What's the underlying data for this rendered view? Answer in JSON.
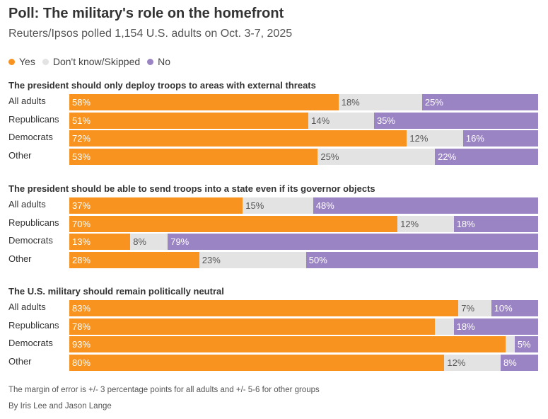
{
  "title": "Poll: The military's role on the homefront",
  "subtitle": "Reuters/Ipsos polled 1,154 U.S. adults on Oct. 3-7, 2025",
  "legend": [
    {
      "label": "Yes",
      "color": "#f7931e"
    },
    {
      "label": "Don't know/Skipped",
      "color": "#e3e3e3"
    },
    {
      "label": "No",
      "color": "#9b84c3"
    }
  ],
  "chart_data": {
    "type": "bar",
    "stacked": true,
    "orientation": "horizontal",
    "legend_position": "top-left",
    "series_names": [
      "Yes",
      "Don't know/Skipped",
      "No"
    ],
    "panels": [
      {
        "question": "The president should only deploy troops to areas with external threats",
        "rows": [
          {
            "group": "All adults",
            "values": [
              58,
              18,
              25
            ],
            "labels": [
              "58%",
              "18%",
              "25%"
            ]
          },
          {
            "group": "Republicans",
            "values": [
              51,
              14,
              35
            ],
            "labels": [
              "51%",
              "14%",
              "35%"
            ]
          },
          {
            "group": "Democrats",
            "values": [
              72,
              12,
              16
            ],
            "labels": [
              "72%",
              "12%",
              "16%"
            ]
          },
          {
            "group": "Other",
            "values": [
              53,
              25,
              22
            ],
            "labels": [
              "53%",
              "25%",
              "22%"
            ]
          }
        ]
      },
      {
        "question": "The president should be able to send troops into a state even if its governor objects",
        "rows": [
          {
            "group": "All adults",
            "values": [
              37,
              15,
              48
            ],
            "labels": [
              "37%",
              "15%",
              "48%"
            ]
          },
          {
            "group": "Republicans",
            "values": [
              70,
              12,
              18
            ],
            "labels": [
              "70%",
              "12%",
              "18%"
            ]
          },
          {
            "group": "Democrats",
            "values": [
              13,
              8,
              79
            ],
            "labels": [
              "13%",
              "8%",
              "79%"
            ]
          },
          {
            "group": "Other",
            "values": [
              28,
              23,
              50
            ],
            "labels": [
              "28%",
              "23%",
              "50%"
            ]
          }
        ]
      },
      {
        "question": "The U.S. military should remain politically neutral",
        "rows": [
          {
            "group": "All adults",
            "values": [
              83,
              7,
              10
            ],
            "labels": [
              "83%",
              "7%",
              "10%"
            ]
          },
          {
            "group": "Republicans",
            "values": [
              78,
              4,
              18
            ],
            "labels": [
              "78%",
              "",
              "18%"
            ]
          },
          {
            "group": "Democrats",
            "values": [
              93,
              2,
              5
            ],
            "labels": [
              "93%",
              "",
              "5%"
            ]
          },
          {
            "group": "Other",
            "values": [
              80,
              12,
              8
            ],
            "labels": [
              "80%",
              "12%",
              "8%"
            ]
          }
        ]
      }
    ]
  },
  "footnote": "The margin of error is +/- 3 percentage points for all adults and +/- 5-6 for other groups",
  "byline": "By Iris Lee and Jason Lange"
}
